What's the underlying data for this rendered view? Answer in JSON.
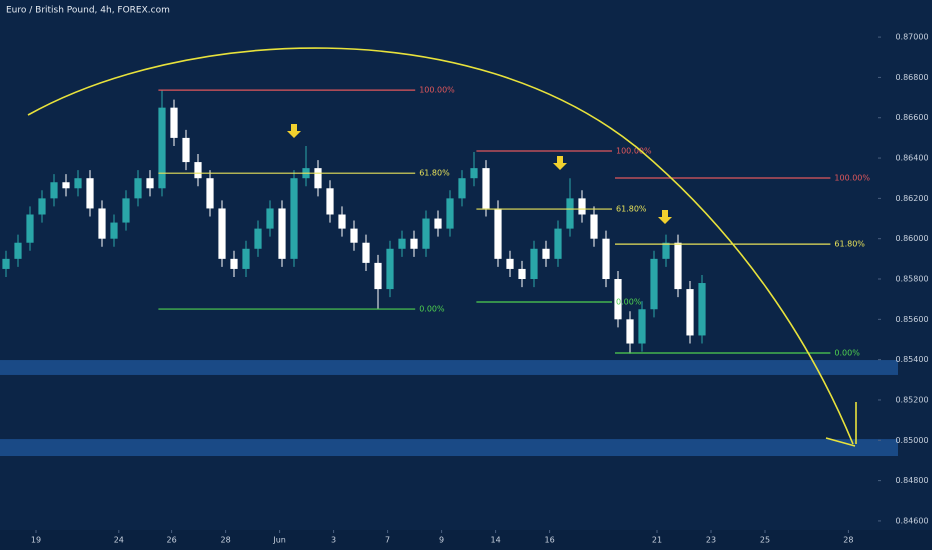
{
  "chart_data": {
    "type": "candlestick",
    "title": "Euro / British Pound, 4h, FOREX.com",
    "up_color": "#2aa6a8",
    "down_color": "#ffffff",
    "open": [
      0.8585,
      0.859,
      0.8598,
      0.8612,
      0.862,
      0.8628,
      0.8625,
      0.863,
      0.8615,
      0.86,
      0.8608,
      0.862,
      0.863,
      0.8625,
      0.8665,
      0.865,
      0.8638,
      0.863,
      0.8615,
      0.859,
      0.8585,
      0.8595,
      0.8605,
      0.8615,
      0.859,
      0.863,
      0.8635,
      0.8625,
      0.8612,
      0.8605,
      0.8598,
      0.8588,
      0.8575,
      0.8595,
      0.86,
      0.8595,
      0.861,
      0.8605,
      0.862,
      0.863,
      0.8635,
      0.8615,
      0.859,
      0.8585,
      0.858,
      0.8595,
      0.859,
      0.8605,
      0.862,
      0.8612,
      0.86,
      0.858,
      0.856,
      0.8548,
      0.8565,
      0.859,
      0.8598,
      0.8575,
      0.8552
    ],
    "high": [
      0.8594,
      0.8602,
      0.8616,
      0.8624,
      0.8632,
      0.8632,
      0.8634,
      0.8634,
      0.8619,
      0.8612,
      0.8624,
      0.8634,
      0.8634,
      0.8674,
      0.8669,
      0.8654,
      0.8642,
      0.8634,
      0.8619,
      0.8594,
      0.8599,
      0.8609,
      0.8619,
      0.8619,
      0.8634,
      0.8646,
      0.8639,
      0.8629,
      0.8616,
      0.8609,
      0.8602,
      0.8592,
      0.8599,
      0.8604,
      0.8604,
      0.8614,
      0.8614,
      0.8624,
      0.8634,
      0.8643,
      0.8639,
      0.8619,
      0.8594,
      0.8589,
      0.8599,
      0.8599,
      0.8609,
      0.863,
      0.8624,
      0.8616,
      0.8604,
      0.8584,
      0.8564,
      0.8569,
      0.8594,
      0.8602,
      0.8602,
      0.8579,
      0.8582
    ],
    "low": [
      0.8581,
      0.8586,
      0.8594,
      0.8608,
      0.8616,
      0.8621,
      0.8621,
      0.8611,
      0.8596,
      0.8596,
      0.8604,
      0.8616,
      0.8621,
      0.8621,
      0.8646,
      0.8634,
      0.8626,
      0.8611,
      0.8586,
      0.8581,
      0.8581,
      0.8591,
      0.8601,
      0.8586,
      0.8586,
      0.8626,
      0.8621,
      0.8608,
      0.8601,
      0.8594,
      0.8584,
      0.8565,
      0.8571,
      0.8591,
      0.8591,
      0.8591,
      0.8601,
      0.8601,
      0.8616,
      0.8626,
      0.8611,
      0.8586,
      0.8581,
      0.8576,
      0.8576,
      0.8586,
      0.8586,
      0.8601,
      0.8608,
      0.8596,
      0.8576,
      0.8556,
      0.8543,
      0.8544,
      0.8561,
      0.8586,
      0.8571,
      0.8548,
      0.8548
    ],
    "close": [
      0.859,
      0.8598,
      0.8612,
      0.862,
      0.8628,
      0.8625,
      0.863,
      0.8615,
      0.86,
      0.8608,
      0.862,
      0.863,
      0.8625,
      0.8665,
      0.865,
      0.8638,
      0.863,
      0.8615,
      0.859,
      0.8585,
      0.8595,
      0.8605,
      0.8615,
      0.859,
      0.863,
      0.8635,
      0.8625,
      0.8612,
      0.8605,
      0.8598,
      0.8588,
      0.8575,
      0.8595,
      0.86,
      0.8595,
      0.861,
      0.8605,
      0.862,
      0.863,
      0.8635,
      0.8615,
      0.859,
      0.8585,
      0.858,
      0.8595,
      0.859,
      0.8605,
      0.862,
      0.8612,
      0.86,
      0.858,
      0.856,
      0.8548,
      0.8565,
      0.859,
      0.8598,
      0.8575,
      0.8552,
      0.8578
    ],
    "xlim": [
      0,
      73
    ],
    "xticks": [
      {
        "value": 3,
        "label": "19"
      },
      {
        "value": 9.9,
        "label": "24"
      },
      {
        "value": 14.3,
        "label": "26"
      },
      {
        "value": 18.8,
        "label": "28"
      },
      {
        "value": 23.3,
        "label": "Jun"
      },
      {
        "value": 27.8,
        "label": "3"
      },
      {
        "value": 32.3,
        "label": "7"
      },
      {
        "value": 36.8,
        "label": "9"
      },
      {
        "value": 41.3,
        "label": "14"
      },
      {
        "value": 45.8,
        "label": "16"
      },
      {
        "value": 54.75,
        "label": "21"
      },
      {
        "value": 59.25,
        "label": "23"
      },
      {
        "value": 63.75,
        "label": "25"
      },
      {
        "value": 70.7,
        "label": "28"
      }
    ],
    "ylim": [
      0.84555,
      0.87184
    ],
    "yticks": [
      {
        "value": 0.846,
        "label": "0.84600"
      },
      {
        "value": 0.848,
        "label": "0.84800"
      },
      {
        "value": 0.85,
        "label": "0.85000"
      },
      {
        "value": 0.852,
        "label": "0.85200"
      },
      {
        "value": 0.854,
        "label": "0.85400"
      },
      {
        "value": 0.856,
        "label": "0.85600"
      },
      {
        "value": 0.858,
        "label": "0.85800"
      },
      {
        "value": 0.86,
        "label": "0.86000"
      },
      {
        "value": 0.862,
        "label": "0.86200"
      },
      {
        "value": 0.864,
        "label": "0.86400"
      },
      {
        "value": 0.866,
        "label": "0.86600"
      },
      {
        "value": 0.868,
        "label": "0.86800"
      },
      {
        "value": 0.87,
        "label": "0.87000"
      }
    ],
    "fib_levels": [
      {
        "label": "100.00%",
        "value": 0.86737,
        "x": [
          13.2,
          34.6
        ],
        "color": "#e0575b"
      },
      {
        "label": "61.80%",
        "value": 0.86325,
        "x": [
          13.2,
          34.6
        ],
        "color": "#e8e25a"
      },
      {
        "label": "0.00%",
        "value": 0.85651,
        "x": [
          13.2,
          34.6
        ],
        "color": "#4fd14f"
      },
      {
        "label": "100.00%",
        "value": 0.86435,
        "x": [
          39.7,
          51
        ],
        "color": "#e0575b"
      },
      {
        "label": "61.80%",
        "value": 0.86147,
        "x": [
          39.7,
          51
        ],
        "color": "#e8e25a"
      },
      {
        "label": "0.00%",
        "value": 0.85686,
        "x": [
          39.7,
          51
        ],
        "color": "#4fd14f"
      },
      {
        "label": "100.00%",
        "value": 0.86301,
        "x": [
          51.25,
          69.2
        ],
        "color": "#e0575b"
      },
      {
        "label": "61.80%",
        "value": 0.85973,
        "x": [
          51.25,
          69.2
        ],
        "color": "#e8e25a"
      },
      {
        "label": "0.00%",
        "value": 0.85433,
        "x": [
          51.25,
          69.2
        ],
        "color": "#4fd14f"
      }
    ],
    "zones": [
      [
        0.85324,
        0.85398
      ],
      [
        0.84922,
        0.85006
      ]
    ],
    "zone_color": "#1a4a86"
  }
}
